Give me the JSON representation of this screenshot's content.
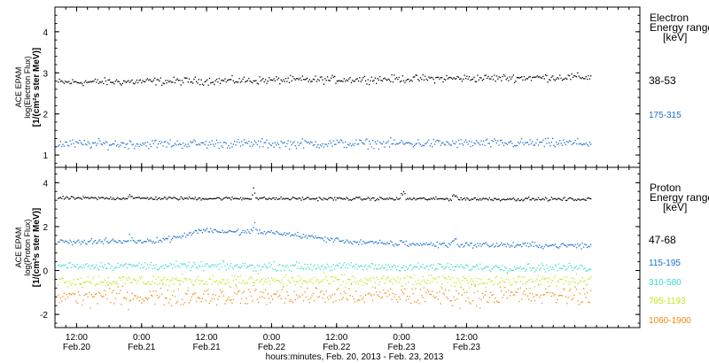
{
  "chart_data": [
    {
      "type": "scatter",
      "panel": "electron",
      "ylabel_lines": [
        "ACE EPAM",
        "log(Electron Flux)",
        "[1/(cm²s ster MeV)]"
      ],
      "ylim": [
        0.7,
        4.6
      ],
      "yticks": [
        1,
        2,
        3,
        4
      ],
      "xlim_hours": [
        0,
        108
      ],
      "legend_title": [
        "Electron",
        "Energy range",
        "[keV]"
      ],
      "series": [
        {
          "name": "38-53",
          "color": "#000000",
          "base": 2.78,
          "trend": 0.13,
          "noise": 0.05,
          "spikes": []
        },
        {
          "name": "175-315",
          "color": "#1a6fd0",
          "base": 1.28,
          "trend": 0.02,
          "noise": 0.06,
          "spikes": []
        }
      ]
    },
    {
      "type": "scatter",
      "panel": "proton",
      "ylabel_lines": [
        "ACE EPAM",
        "log(Proton Flux)",
        "[1/(cm²s ster MeV)]"
      ],
      "ylim": [
        -2.6,
        4.7
      ],
      "yticks": [
        -2,
        0,
        2,
        4
      ],
      "xlim_hours": [
        0,
        108
      ],
      "legend_title": [
        "Proton",
        "Energy range",
        "[keV]"
      ],
      "series": [
        {
          "name": "47-68",
          "color": "#000000",
          "base": 3.32,
          "trend": -0.05,
          "noise": 0.04,
          "spikes": [
            [
              13.8,
              0.4
            ],
            [
              36.5,
              1.0
            ],
            [
              64.2,
              0.6
            ],
            [
              73.7,
              0.7
            ]
          ]
        },
        {
          "name": "115-195",
          "color": "#1a6fd0",
          "base": 1.35,
          "trend": -0.2,
          "noise": 0.07,
          "hump": [
            [
              27,
              0.25,
              4
            ],
            [
              37,
              0.5,
              14
            ]
          ],
          "spikes": [
            [
              13.8,
              0.4
            ],
            [
              36.5,
              0.8
            ],
            [
              64.2,
              0.5
            ],
            [
              73.7,
              0.6
            ]
          ]
        },
        {
          "name": "310-580",
          "color": "#3fd8d0",
          "base": 0.25,
          "trend": -0.1,
          "noise": 0.1,
          "spikes": []
        },
        {
          "name": "795-1193",
          "color": "#c6e620",
          "base": -0.45,
          "trend": 0.0,
          "noise": 0.15,
          "spikes": []
        },
        {
          "name": "1060-1900",
          "color": "#f08a10",
          "base": -1.15,
          "trend": 0.05,
          "noise": 0.25,
          "spikes": []
        }
      ]
    }
  ],
  "x_axis": {
    "ticks": [
      {
        "hours": 0,
        "time": "",
        "date": ""
      },
      {
        "hours": 4,
        "time": "12:00",
        "date": "Feb.20"
      },
      {
        "hours": 16,
        "time": "0:00",
        "date": "Feb.21"
      },
      {
        "hours": 28,
        "time": "12:00",
        "date": "Feb.21"
      },
      {
        "hours": 40,
        "time": "0:00",
        "date": "Feb.22"
      },
      {
        "hours": 52,
        "time": "12:00",
        "date": "Feb.22"
      },
      {
        "hours": 64,
        "time": "0:00",
        "date": "Feb.23"
      },
      {
        "hours": 76,
        "time": "12:00",
        "date": "Feb.23"
      }
    ],
    "label": "hours:minutes, Feb. 20, 2013 - Feb. 23, 2013"
  },
  "colors": {
    "frame": "#000000",
    "background": "#ffffff"
  }
}
